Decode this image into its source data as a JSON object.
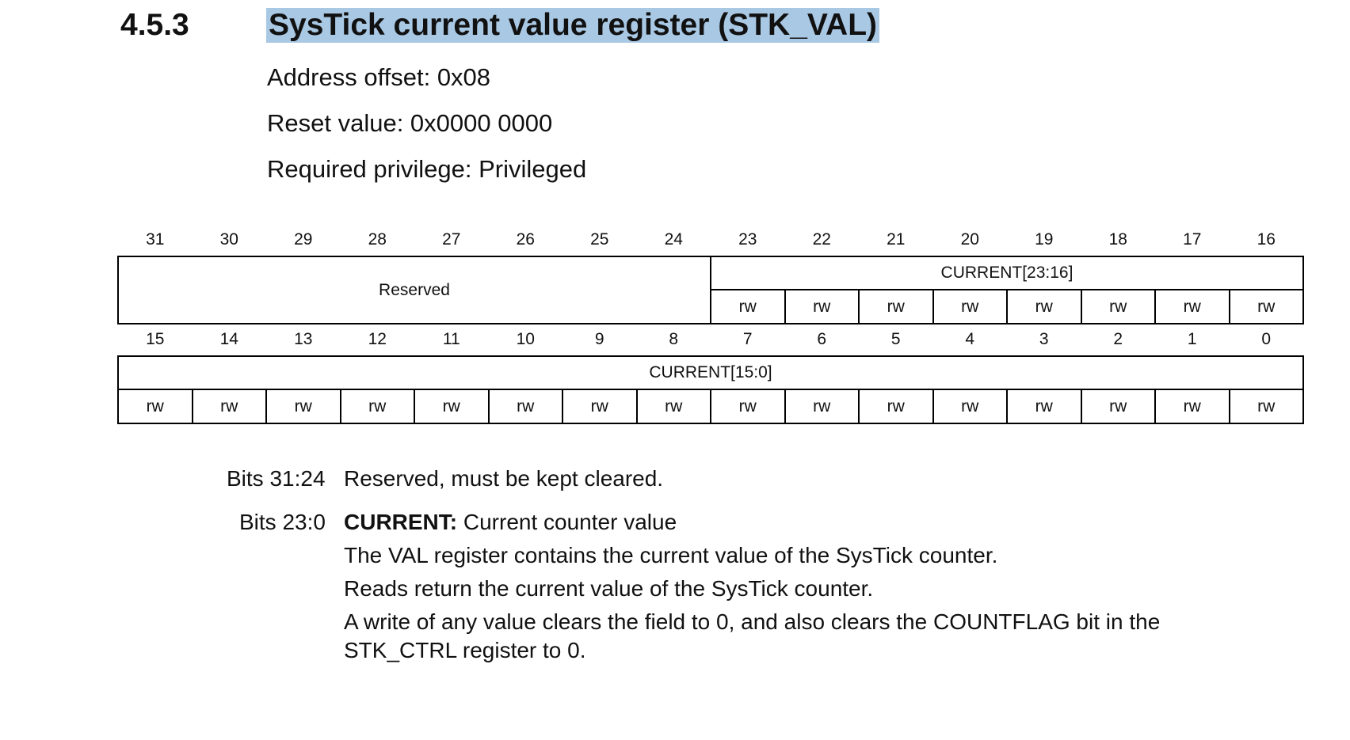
{
  "section": {
    "number": "4.5.3",
    "title": "SysTick current value register (STK_VAL)"
  },
  "meta": {
    "address_offset": "Address offset: 0x08",
    "reset_value": "Reset value: 0x0000 0000",
    "required_privilege": "Required privilege: Privileged"
  },
  "register": {
    "upper_bits": [
      "31",
      "30",
      "29",
      "28",
      "27",
      "26",
      "25",
      "24",
      "23",
      "22",
      "21",
      "20",
      "19",
      "18",
      "17",
      "16"
    ],
    "lower_bits": [
      "15",
      "14",
      "13",
      "12",
      "11",
      "10",
      "9",
      "8",
      "7",
      "6",
      "5",
      "4",
      "3",
      "2",
      "1",
      "0"
    ],
    "reserved_label": "Reserved",
    "current_high_label": "CURRENT[23:16]",
    "current_low_label": "CURRENT[15:0]",
    "access": "rw"
  },
  "bit_descriptions": [
    {
      "bits": "Bits 31:24",
      "text": "Reserved, must be kept cleared."
    },
    {
      "bits": "Bits 23:0",
      "name": "CURRENT:",
      "summary": "Current counter value",
      "lines": [
        "The VAL register contains the current value of the SysTick counter.",
        "Reads return the current value of the SysTick counter.",
        "A write of any value clears the field to 0, and also clears the COUNTFLAG bit in the",
        "STK_CTRL register to 0."
      ]
    }
  ]
}
